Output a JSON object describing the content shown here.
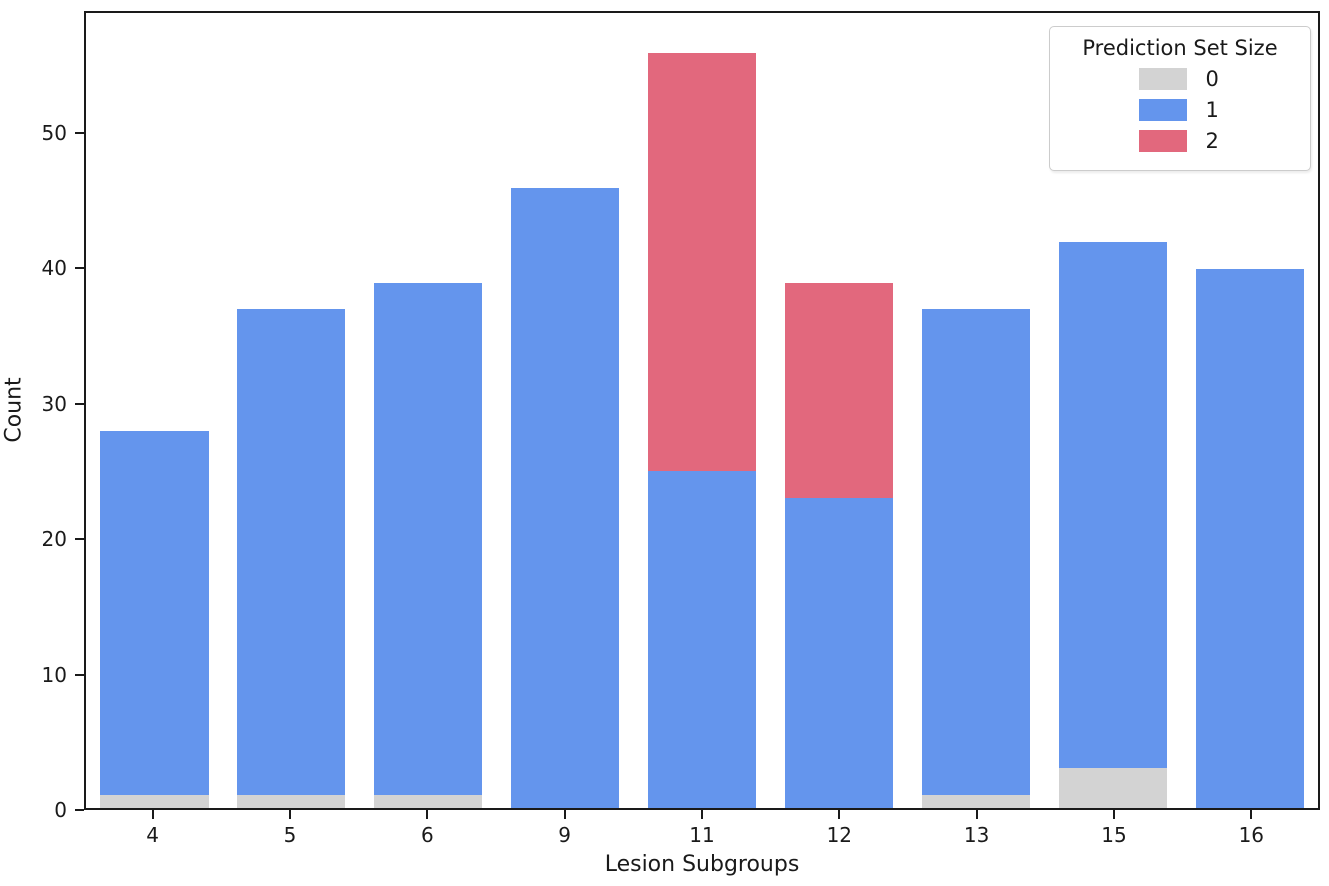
{
  "chart_data": {
    "type": "bar",
    "stacked": true,
    "title": "",
    "xlabel": "Lesion Subgroups",
    "ylabel": "Count",
    "categories": [
      "4",
      "5",
      "6",
      "9",
      "11",
      "12",
      "13",
      "15",
      "16"
    ],
    "series": [
      {
        "name": "0",
        "color": "#d3d3d3",
        "values": [
          1,
          1,
          1,
          0,
          0,
          0,
          1,
          3,
          0
        ]
      },
      {
        "name": "1",
        "color": "#6495ed",
        "values": [
          27,
          36,
          38,
          46,
          25,
          23,
          36,
          39,
          40
        ]
      },
      {
        "name": "2",
        "color": "#e2687d",
        "values": [
          0,
          0,
          0,
          0,
          31,
          16,
          0,
          0,
          0
        ]
      }
    ],
    "stack_totals": [
      28,
      37,
      39,
      46,
      56,
      39,
      37,
      42,
      40
    ],
    "ylim": [
      0,
      59
    ],
    "yticks": [
      0,
      10,
      20,
      30,
      40,
      50
    ],
    "grid": false,
    "legend": {
      "title": "Prediction Set Size",
      "position": "upper right",
      "entries": [
        {
          "label": "0",
          "color": "#d3d3d3"
        },
        {
          "label": "1",
          "color": "#6495ed"
        },
        {
          "label": "2",
          "color": "#e2687d"
        }
      ]
    },
    "colors": {
      "axis": "#1a1a1a",
      "background": "#ffffff",
      "legend_border": "#cccccc"
    }
  }
}
